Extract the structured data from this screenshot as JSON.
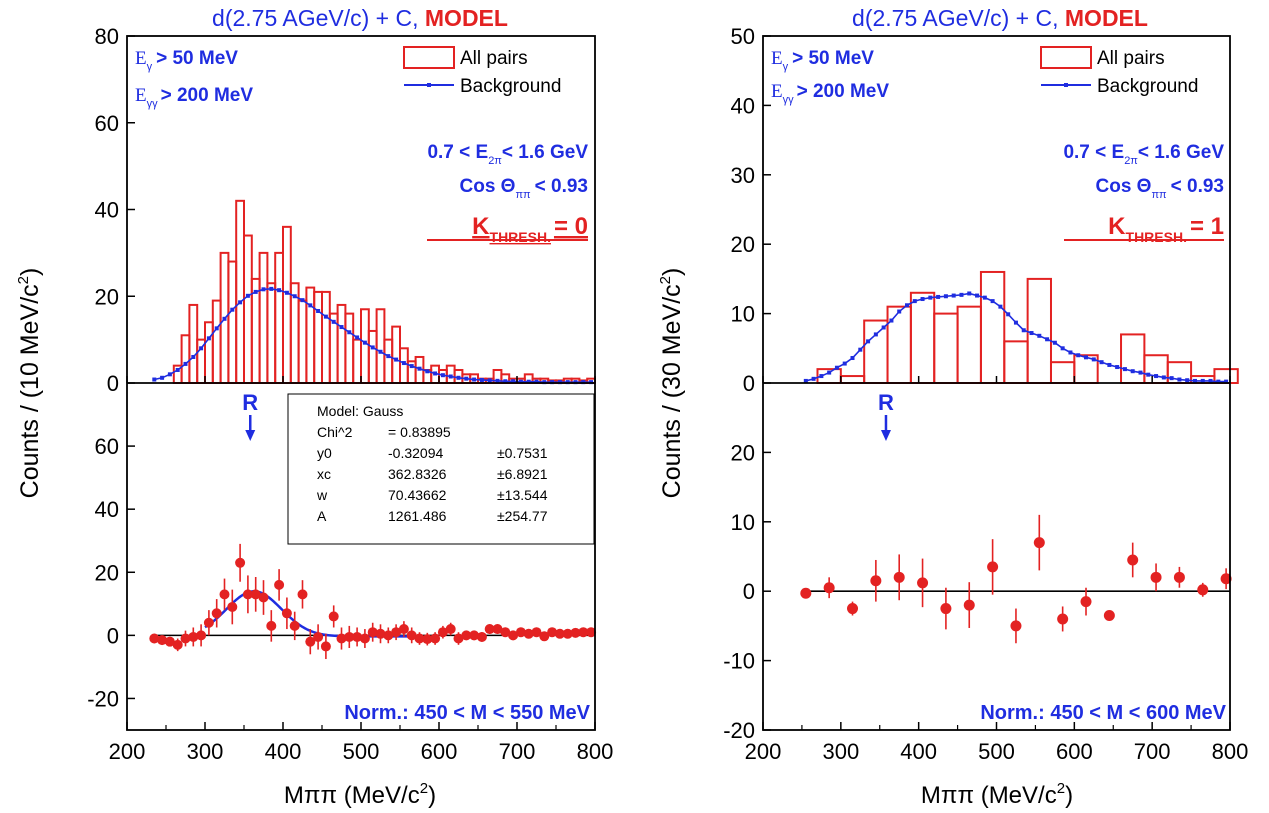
{
  "colors": {
    "blue": "#1f2de0",
    "red": "#e32222",
    "black": "#000000",
    "axis": "#000000"
  },
  "chart_data": [
    {
      "type": "bar",
      "id": "left",
      "title": {
        "text": "d(2.75 AGeV/c) + C, ",
        "emph": "MODEL"
      },
      "ylabel": "Counts / (10 MeV/c",
      "xlabel": "Mππ   (MeV/c",
      "xlim": [
        200,
        800
      ],
      "top_ylim": [
        0,
        80
      ],
      "bottom_ylim": [
        -30,
        80
      ],
      "top_yticks": [
        0,
        20,
        40,
        60,
        80
      ],
      "bottom_yticks": [
        -20,
        0,
        20,
        40,
        60
      ],
      "xticks": [
        200,
        300,
        400,
        500,
        600,
        700,
        800
      ],
      "cuts": {
        "eg": "> 50 MeV",
        "egg": "> 200 MeV",
        "e2pi_a": "0.7 < E",
        "e2pi_b": "< 1.6 GeV",
        "cos_a": "Cos Θ",
        "cos_b": "<  0.93",
        "k_label": "K",
        "k_sub": "THRESH.",
        "k_val": "= 0"
      },
      "sub": {
        "g": "γ",
        "gg": "γγ",
        "twopi": "2π",
        "pipi": "ππ"
      },
      "legend": {
        "all_pairs": "All pairs",
        "background": "Background"
      },
      "resonance_label": "R",
      "resonance_x": 358,
      "norm": "Norm.: 450 < M < 550 MeV",
      "fit_box": {
        "rows": [
          [
            "Model: Gauss",
            "",
            ""
          ],
          [
            "Chi^2",
            "= 0.83895",
            ""
          ],
          [
            "y0",
            "-0.32094",
            "±0.7531"
          ],
          [
            "xc",
            "362.8326",
            "±6.8921"
          ],
          [
            "w",
            "70.43662",
            "±13.544"
          ],
          [
            "A",
            "1261.486",
            "±254.77"
          ]
        ]
      },
      "fit": {
        "y0": -0.32094,
        "xc": 362.8326,
        "w": 70.43662,
        "A": 1261.486
      },
      "bin_width": 10,
      "all_pairs": {
        "x": [
          265,
          275,
          285,
          295,
          305,
          315,
          325,
          335,
          345,
          355,
          365,
          375,
          385,
          395,
          405,
          415,
          425,
          435,
          445,
          455,
          465,
          475,
          485,
          495,
          505,
          515,
          525,
          535,
          545,
          555,
          565,
          575,
          585,
          595,
          605,
          615,
          625,
          635,
          645,
          655,
          665,
          675,
          685,
          695,
          705,
          715,
          725,
          735,
          745,
          755,
          765,
          775,
          785,
          795
        ],
        "y": [
          4,
          11,
          18,
          10,
          14,
          19,
          30,
          28,
          42,
          34,
          24,
          30,
          23,
          30,
          36,
          23,
          19,
          22,
          21,
          21,
          16,
          18,
          16,
          10,
          17,
          12,
          17,
          10,
          13,
          8,
          5,
          6,
          3,
          4,
          3,
          4,
          3,
          2,
          2,
          1,
          1,
          3,
          2,
          1,
          1,
          2,
          1,
          1,
          0.6,
          0.6,
          1,
          1,
          0.6,
          1
        ]
      },
      "background": {
        "x": [
          235,
          245,
          255,
          265,
          275,
          285,
          295,
          305,
          315,
          325,
          335,
          345,
          355,
          365,
          375,
          385,
          395,
          405,
          415,
          425,
          435,
          445,
          455,
          465,
          475,
          485,
          495,
          505,
          515,
          525,
          535,
          545,
          555,
          565,
          575,
          585,
          595,
          605,
          615,
          625,
          635,
          645,
          655,
          665,
          675,
          685,
          695,
          705,
          715,
          725,
          735,
          745,
          755,
          765,
          775,
          785,
          795
        ],
        "y": [
          0.8,
          1.2,
          2,
          3,
          4.4,
          6,
          8,
          10.3,
          12.6,
          14.8,
          16.9,
          18.6,
          20.1,
          21,
          21.6,
          21.7,
          21.4,
          20.8,
          20,
          19.1,
          17.9,
          16.6,
          15.3,
          14.1,
          12.9,
          11.7,
          10.5,
          9.3,
          8.2,
          7.2,
          6.2,
          5.4,
          4.6,
          3.9,
          3.3,
          2.7,
          2.2,
          1.8,
          1.5,
          1.2,
          1,
          0.8,
          0.7,
          0.6,
          0.5,
          0.4,
          0.4,
          0.3,
          0.3,
          0.3,
          0.2,
          0.2,
          0.2,
          0.2,
          0.2,
          0.2,
          0.2
        ]
      },
      "difference": {
        "x": [
          235,
          245,
          255,
          265,
          275,
          285,
          295,
          305,
          315,
          325,
          335,
          345,
          355,
          365,
          375,
          385,
          395,
          405,
          415,
          425,
          435,
          445,
          455,
          465,
          475,
          485,
          495,
          505,
          515,
          525,
          535,
          545,
          555,
          565,
          575,
          585,
          595,
          605,
          615,
          625,
          635,
          645,
          655,
          665,
          675,
          685,
          695,
          705,
          715,
          725,
          735,
          745,
          755,
          765,
          775,
          785,
          795
        ],
        "y": [
          -1,
          -1.5,
          -2,
          -3,
          -1,
          -0.5,
          0,
          4,
          7,
          13,
          9,
          23,
          13,
          13,
          12,
          3,
          16,
          7,
          3,
          13,
          -2,
          -0.5,
          -3.5,
          6,
          -1,
          -0.5,
          -0.5,
          -1,
          1,
          0.5,
          0,
          1,
          2,
          0,
          -1,
          -1.2,
          -1,
          1,
          2,
          -1,
          0,
          0,
          -0.5,
          2,
          2,
          1,
          0,
          1,
          0.5,
          1,
          -0.3,
          1,
          0.5,
          0.5,
          0.8,
          1,
          1
        ],
        "err": [
          1.5,
          1.5,
          1.5,
          2,
          2.5,
          3,
          3.5,
          4,
          4.5,
          5,
          5.5,
          6,
          6,
          5.5,
          5.5,
          5,
          5,
          5,
          4.5,
          4.5,
          4,
          4,
          4,
          3.5,
          3.5,
          3.5,
          3,
          3,
          3,
          3,
          2.5,
          2.5,
          2.5,
          2.5,
          2,
          2,
          2,
          2,
          2,
          2,
          1.5,
          1.5,
          1.5,
          1.5,
          1.5,
          1.5,
          1.5,
          1.5,
          1.5,
          1.5,
          1.2,
          1.2,
          1.2,
          1.2,
          1.2,
          1.2,
          1.2
        ]
      }
    },
    {
      "type": "bar",
      "id": "right",
      "title": {
        "text": "d(2.75 AGeV/c) + C, ",
        "emph": "MODEL"
      },
      "ylabel": "Counts / (30 MeV/c",
      "xlabel": "Mππ   (MeV/c",
      "xlim": [
        200,
        800
      ],
      "top_ylim": [
        0,
        50
      ],
      "bottom_ylim": [
        -20,
        30
      ],
      "top_yticks": [
        0,
        10,
        20,
        30,
        40,
        50
      ],
      "bottom_yticks": [
        -20,
        -10,
        0,
        10,
        20
      ],
      "xticks": [
        200,
        300,
        400,
        500,
        600,
        700,
        800
      ],
      "cuts": {
        "eg": "> 50 MeV",
        "egg": "> 200 MeV",
        "e2pi_a": "0.7 < E",
        "e2pi_b": "< 1.6 GeV",
        "cos_a": "Cos Θ",
        "cos_b": "<  0.93",
        "k_label": "K",
        "k_sub": "THRESH.",
        "k_val": "= 1"
      },
      "sub": {
        "g": "γ",
        "gg": "γγ",
        "twopi": "2π",
        "pipi": "ππ"
      },
      "legend": {
        "all_pairs": "All pairs",
        "background": "Background"
      },
      "resonance_label": "R",
      "resonance_x": 358,
      "norm": "Norm.: 450 < M < 600 MeV",
      "bin_width": 30,
      "all_pairs": {
        "x": [
          285,
          315,
          345,
          375,
          405,
          435,
          465,
          495,
          525,
          555,
          585,
          615,
          645,
          675,
          705,
          735,
          765,
          795
        ],
        "y": [
          2,
          1,
          9,
          11,
          13,
          10,
          11,
          16,
          6,
          15,
          3,
          4,
          0,
          7,
          4,
          3,
          1,
          2
        ]
      },
      "background": {
        "x": [
          255,
          265,
          275,
          285,
          295,
          305,
          315,
          325,
          335,
          345,
          355,
          365,
          375,
          385,
          395,
          405,
          415,
          425,
          435,
          445,
          455,
          465,
          475,
          485,
          495,
          505,
          515,
          525,
          535,
          545,
          555,
          565,
          575,
          585,
          595,
          605,
          615,
          625,
          635,
          645,
          655,
          665,
          675,
          685,
          695,
          705,
          715,
          725,
          735,
          745,
          755,
          765,
          775,
          785,
          795
        ],
        "y": [
          0.3,
          0.6,
          1,
          1.5,
          2.2,
          2.8,
          3.6,
          4.8,
          6,
          7,
          8,
          9,
          10.3,
          11.2,
          11.8,
          12.1,
          12.3,
          12.4,
          12.5,
          12.6,
          12.7,
          12.9,
          12.6,
          12.3,
          11.8,
          11,
          9.9,
          8.7,
          7.6,
          7.2,
          6.8,
          6.3,
          5.8,
          5,
          4.4,
          4,
          3.7,
          3.4,
          3,
          2.6,
          2.3,
          2,
          1.7,
          1.5,
          1.2,
          1,
          0.8,
          0.7,
          0.5,
          0.4,
          0.3,
          0.3,
          0.3,
          0.2,
          0.2
        ]
      },
      "difference": {
        "x": [
          255,
          285,
          315,
          345,
          375,
          405,
          435,
          465,
          495,
          525,
          555,
          585,
          615,
          645,
          675,
          705,
          735,
          765,
          795
        ],
        "y": [
          -0.3,
          0.5,
          -2.5,
          1.5,
          2,
          1.2,
          -2.5,
          -2,
          3.5,
          -5,
          7,
          -4,
          -1.5,
          -3.5,
          4.5,
          2,
          2,
          0.2,
          1.8
        ],
        "err": [
          0.6,
          1.5,
          1,
          3,
          3.3,
          3.5,
          3,
          3.3,
          4,
          2.5,
          4,
          1.8,
          2,
          0.5,
          2.5,
          2,
          1.5,
          1,
          1.5
        ]
      }
    }
  ]
}
